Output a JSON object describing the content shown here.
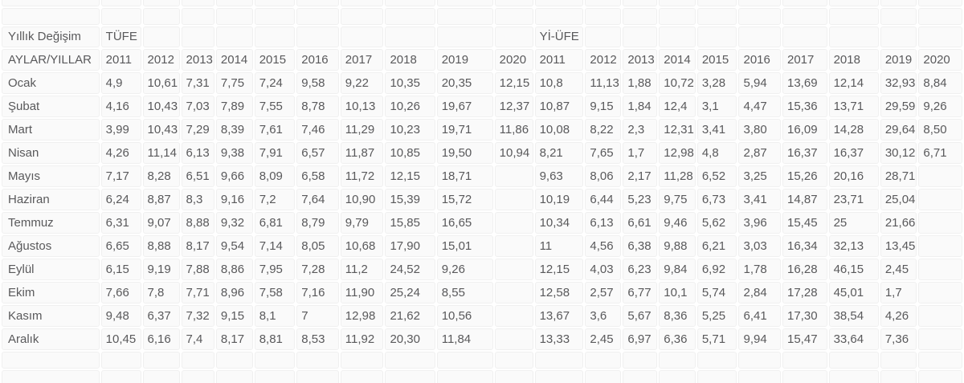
{
  "colors": {
    "background": "#ffffff",
    "cell_bg": "#fafafa",
    "cell_border": "#f0f0f0",
    "text": "#59595b"
  },
  "table": {
    "corner_label": "Yıllık Değişim",
    "col_header_label": "AYLAR/YILLAR",
    "tufe_label": "TÜFE",
    "yiufe_label": "Yİ-ÜFE",
    "years_tufe": [
      "2011",
      "2012",
      "2013",
      "2014",
      "2015",
      "2016",
      "2017",
      "2018",
      "2019",
      "2020"
    ],
    "years_yiufe": [
      "2011",
      "2012",
      "2013",
      "2014",
      "2015",
      "2016",
      "2017",
      "2018",
      "2019",
      "2020"
    ],
    "rows": [
      {
        "month": "Ocak",
        "tufe": [
          "4,9",
          "10,61",
          "7,31",
          "7,75",
          "7,24",
          "9,58",
          "9,22",
          "10,35",
          "20,35",
          "12,15"
        ],
        "yiufe": [
          "10,8",
          "11,13",
          "1,88",
          "10,72",
          "3,28",
          "5,94",
          "13,69",
          "12,14",
          "32,93",
          "8,84"
        ]
      },
      {
        "month": "Şubat",
        "tufe": [
          "4,16",
          "10,43",
          "7,03",
          "7,89",
          "7,55",
          "8,78",
          "10,13",
          "10,26",
          "19,67",
          "12,37"
        ],
        "yiufe": [
          "10,87",
          "9,15",
          "1,84",
          "12,4",
          "3,1",
          "4,47",
          "15,36",
          "13,71",
          "29,59",
          "9,26"
        ]
      },
      {
        "month": "Mart",
        "tufe": [
          "3,99",
          "10,43",
          "7,29",
          "8,39",
          "7,61",
          "7,46",
          "11,29",
          "10,23",
          "19,71",
          "11,86"
        ],
        "yiufe": [
          "10,08",
          "8,22",
          "2,3",
          "12,31",
          "3,41",
          "3,80",
          "16,09",
          "14,28",
          "29,64",
          "8,50"
        ]
      },
      {
        "month": "Nisan",
        "tufe": [
          "4,26",
          "11,14",
          "6,13",
          "9,38",
          "7,91",
          "6,57",
          "11,87",
          "10,85",
          "19,50",
          "10,94"
        ],
        "yiufe": [
          "8,21",
          "7,65",
          "1,7",
          "12,98",
          "4,8",
          "2,87",
          "16,37",
          "16,37",
          "30,12",
          "6,71"
        ]
      },
      {
        "month": "Mayıs",
        "tufe": [
          "7,17",
          "8,28",
          "6,51",
          "9,66",
          "8,09",
          "6,58",
          "11,72",
          "12,15",
          "18,71",
          ""
        ],
        "yiufe": [
          "9,63",
          "8,06",
          "2,17",
          "11,28",
          "6,52",
          "3,25",
          "15,26",
          "20,16",
          "28,71",
          ""
        ]
      },
      {
        "month": "Haziran",
        "tufe": [
          "6,24",
          "8,87",
          "8,3",
          "9,16",
          "7,2",
          "7,64",
          "10,90",
          "15,39",
          "15,72",
          ""
        ],
        "yiufe": [
          "10,19",
          "6,44",
          "5,23",
          "9,75",
          "6,73",
          "3,41",
          "14,87",
          "23,71",
          "25,04",
          ""
        ]
      },
      {
        "month": "Temmuz",
        "tufe": [
          "6,31",
          "9,07",
          "8,88",
          "9,32",
          "6,81",
          "8,79",
          "9,79",
          "15,85",
          "16,65",
          ""
        ],
        "yiufe": [
          "10,34",
          "6,13",
          "6,61",
          "9,46",
          "5,62",
          "3,96",
          "15,45",
          "25",
          "21,66",
          ""
        ]
      },
      {
        "month": "Ağustos",
        "tufe": [
          "6,65",
          "8,88",
          "8,17",
          "9,54",
          "7,14",
          "8,05",
          "10,68",
          "17,90",
          "15,01",
          ""
        ],
        "yiufe": [
          "11",
          "4,56",
          "6,38",
          "9,88",
          "6,21",
          "3,03",
          "16,34",
          "32,13",
          "13,45",
          ""
        ]
      },
      {
        "month": "Eylül",
        "tufe": [
          "6,15",
          "9,19",
          "7,88",
          "8,86",
          "7,95",
          "7,28",
          "11,2",
          "24,52",
          "9,26",
          ""
        ],
        "yiufe": [
          "12,15",
          "4,03",
          "6,23",
          "9,84",
          "6,92",
          "1,78",
          "16,28",
          "46,15",
          "2,45",
          ""
        ]
      },
      {
        "month": "Ekim",
        "tufe": [
          "7,66",
          "7,8",
          "7,71",
          "8,96",
          "7,58",
          "7,16",
          "11,90",
          "25,24",
          "8,55",
          ""
        ],
        "yiufe": [
          "12,58",
          "2,57",
          "6,77",
          "10,1",
          "5,74",
          "2,84",
          "17,28",
          "45,01",
          "1,7",
          ""
        ]
      },
      {
        "month": "Kasım",
        "tufe": [
          "9,48",
          "6,37",
          "7,32",
          "9,15",
          "8,1",
          "7",
          "12,98",
          "21,62",
          "10,56",
          ""
        ],
        "yiufe": [
          "13,67",
          "3,6",
          "5,67",
          "8,36",
          "5,25",
          "6,41",
          "17,30",
          "38,54",
          "4,26",
          ""
        ]
      },
      {
        "month": "Aralık",
        "tufe": [
          "10,45",
          "6,16",
          "7,4",
          "8,17",
          "8,81",
          "8,53",
          "11,92",
          "20,30",
          "11,84",
          ""
        ],
        "yiufe": [
          "13,33",
          "2,45",
          "6,97",
          "6,36",
          "5,71",
          "9,94",
          "15,47",
          "33,64",
          "7,36",
          ""
        ]
      }
    ]
  }
}
